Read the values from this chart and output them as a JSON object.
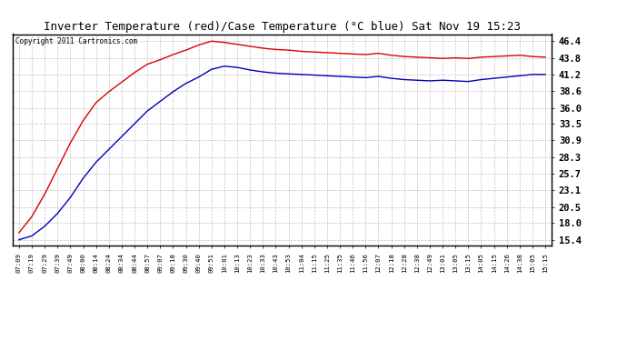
{
  "title": "Inverter Temperature (red)/Case Temperature (°C blue) Sat Nov 19 15:23",
  "copyright": "Copyright 2011 Cartronics.com",
  "ytick_labels": [
    "15.4",
    "18.0",
    "20.5",
    "23.1",
    "25.7",
    "28.3",
    "30.9",
    "33.5",
    "36.0",
    "38.6",
    "41.2",
    "43.8",
    "46.4"
  ],
  "ytick_values": [
    15.4,
    18.0,
    20.5,
    23.1,
    25.7,
    28.3,
    30.9,
    33.5,
    36.0,
    38.6,
    41.2,
    43.8,
    46.4
  ],
  "ylim": [
    14.5,
    47.5
  ],
  "red_color": "#dd0000",
  "blue_color": "#0000bb",
  "bg_color": "#ffffff",
  "grid_color": "#bbbbbb",
  "x_labels": [
    "07:09",
    "07:19",
    "07:29",
    "07:39",
    "07:49",
    "08:00",
    "08:14",
    "08:24",
    "08:34",
    "08:44",
    "08:57",
    "09:07",
    "09:18",
    "09:30",
    "09:40",
    "09:51",
    "10:01",
    "10:13",
    "10:23",
    "10:33",
    "10:43",
    "10:53",
    "11:04",
    "11:15",
    "11:25",
    "11:35",
    "11:46",
    "11:56",
    "12:07",
    "12:18",
    "12:28",
    "12:38",
    "12:49",
    "13:01",
    "13:05",
    "13:15",
    "14:05",
    "14:15",
    "14:26",
    "14:38",
    "15:05",
    "15:15"
  ],
  "red_values": [
    16.5,
    19.0,
    22.5,
    26.5,
    30.5,
    34.0,
    36.8,
    38.5,
    40.0,
    41.5,
    42.8,
    43.5,
    44.3,
    45.0,
    45.8,
    46.4,
    46.2,
    45.9,
    45.6,
    45.3,
    45.1,
    45.0,
    44.8,
    44.7,
    44.6,
    44.5,
    44.4,
    44.3,
    44.5,
    44.2,
    44.0,
    43.9,
    43.8,
    43.7,
    43.8,
    43.7,
    43.9,
    44.0,
    44.1,
    44.2,
    44.0,
    43.9
  ],
  "blue_values": [
    15.4,
    16.0,
    17.5,
    19.5,
    22.0,
    25.0,
    27.5,
    29.5,
    31.5,
    33.5,
    35.5,
    37.0,
    38.5,
    39.8,
    40.8,
    42.0,
    42.5,
    42.3,
    41.9,
    41.6,
    41.4,
    41.3,
    41.2,
    41.1,
    41.0,
    40.9,
    40.8,
    40.7,
    40.9,
    40.6,
    40.4,
    40.3,
    40.2,
    40.3,
    40.2,
    40.1,
    40.4,
    40.6,
    40.8,
    41.0,
    41.2,
    41.2
  ]
}
